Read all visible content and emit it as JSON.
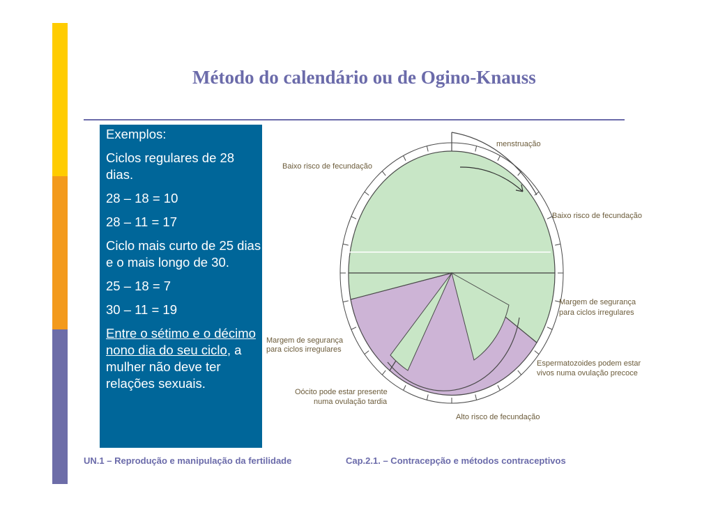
{
  "slide": {
    "title": "Método do calendário ou de Ogino-Knauss",
    "sidebar_colors": [
      "#ffcc00",
      "#f39a1c",
      "#6d6da8"
    ]
  },
  "textbox": {
    "l1": "Exemplos:",
    "l2": "Ciclos regulares de 28 dias.",
    "l3": "28 – 18 = 10",
    "l4": "28 – 11 = 17",
    "l5": "Ciclo mais curto de 25 dias e o mais longo de 30.",
    "l6": "25 – 18 = 7",
    "l7": "30 – 11 = 19",
    "l8_underlined": "Entre o sétimo e o décimo nono dia do seu ciclo",
    "l8_rest": ", a mulher não deve ter relações sexuais."
  },
  "figure": {
    "labels": {
      "menstruacao": "menstruação",
      "baixo_top": "Baixo risco de fecundação",
      "baixo_right": "Baixo risco de fecundação",
      "margem_right_1": "Margem de segurança",
      "margem_right_2": "para ciclos irregulares",
      "margem_left_1": "Margem de segurança",
      "margem_left_2": "para ciclos irregulares",
      "esperm_1": "Espermatozoides podem estar",
      "esperm_2": "vivos numa ovulação precoce",
      "oocito_1": "Oócito pode estar presente",
      "oocito_2": "numa ovulação tardia",
      "alto": "Alto risco de fecundação"
    },
    "colors": {
      "green": "#c8e6c6",
      "purple": "#cdb4d6",
      "line": "#4a4a4a"
    }
  },
  "footer": {
    "left": "UN.1 – Reprodução e manipulação da fertilidade",
    "right": "Cap.2.1. – Contracepção e métodos contraceptivos"
  }
}
